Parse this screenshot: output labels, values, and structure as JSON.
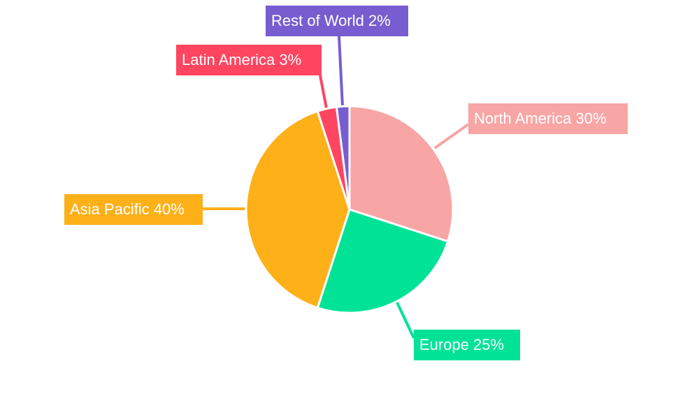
{
  "chart_data": {
    "type": "pie",
    "title": "",
    "start_angle": "top, clockwise",
    "legend": "none (callout labels)",
    "slices": [
      {
        "label": "North America",
        "value": 30,
        "display": "North America 30%",
        "color": "#F8A5A5"
      },
      {
        "label": "Europe",
        "value": 25,
        "display": "Europe 25%",
        "color": "#00E396"
      },
      {
        "label": "Asia Pacific",
        "value": 40,
        "display": "Asia Pacific 40%",
        "color": "#FEB019"
      },
      {
        "label": "Latin America",
        "value": 3,
        "display": "Latin America 3%",
        "color": "#FF4560"
      },
      {
        "label": "Rest of World",
        "value": 2,
        "display": "Rest of World 2%",
        "color": "#775DD0"
      }
    ]
  }
}
